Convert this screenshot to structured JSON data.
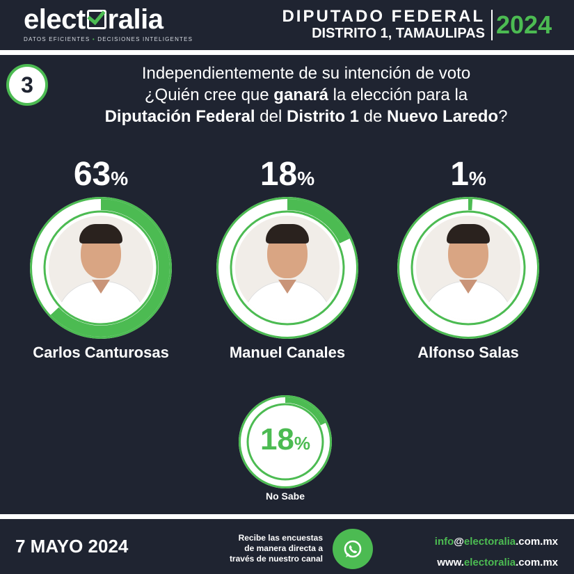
{
  "header": {
    "logo_text_1": "elect",
    "logo_text_2": "ralia",
    "logo_tagline_1": "DATOS EFICIENTES",
    "logo_tagline_dot": "•",
    "logo_tagline_2": "DECISIONES INTELIGENTES",
    "title_line1": "DIPUTADO FEDERAL",
    "title_line2": "DISTRITO 1, TAMAULIPAS",
    "year": "2024"
  },
  "question": {
    "number": "3",
    "line1": "Independientemente de su intención de voto",
    "line2_pre": "¿Quién cree que ",
    "line2_bold": "ganará",
    "line2_post": " la elección para la",
    "line3_bold1": "Diputación Federal",
    "line3_mid1": " del ",
    "line3_bold2": "Distrito 1",
    "line3_mid2": " de ",
    "line3_bold3": "Nuevo Laredo",
    "line3_post": "?"
  },
  "chart_data": {
    "type": "pie",
    "unit": "%",
    "categories": [
      "Carlos Canturosas",
      "Manuel Canales",
      "Alfonso Salas",
      "No Sabe"
    ],
    "values": [
      63,
      18,
      1,
      18
    ]
  },
  "candidates": [
    {
      "pct": "63",
      "name": "Carlos Canturosas"
    },
    {
      "pct": "18",
      "name": "Manuel Canales"
    },
    {
      "pct": "1",
      "name": "Alfonso Salas"
    }
  ],
  "nosabe": {
    "pct": "18",
    "label": "No Sabe"
  },
  "pct_symbol": "%",
  "footer": {
    "date": "7 MAYO 2024",
    "msg_line1": "Recibe las encuestas",
    "msg_line2": "de manera directa a",
    "msg_line3": "través de nuestro canal",
    "email_user": "info",
    "email_at": "@",
    "email_domain": "electoralia",
    "email_tld": ".com.mx",
    "web_prefix": "www.",
    "web_domain": "electoralia",
    "web_tld": ".com.mx"
  },
  "colors": {
    "accent": "#4cbb52",
    "background": "#1f2431",
    "ring_track": "#ffffff"
  }
}
